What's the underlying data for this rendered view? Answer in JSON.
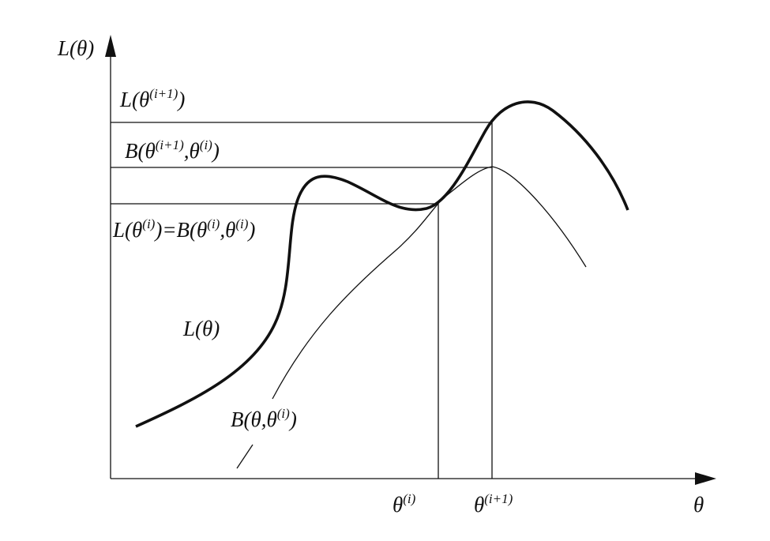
{
  "labels": [
    {
      "parts": [
        {
          "text": "L(θ)"
        }
      ]
    },
    {
      "parts": [
        {
          "text": "L(θ"
        },
        {
          "sup": "(i+1)"
        },
        {
          "text": ")"
        }
      ]
    },
    {
      "parts": [
        {
          "text": "B(θ"
        },
        {
          "sup": "(i+1)"
        },
        {
          "text": ",θ"
        },
        {
          "sup": "(i)"
        },
        {
          "text": ")"
        }
      ]
    },
    {
      "parts": [
        {
          "text": "L(θ"
        },
        {
          "sup": "(i)"
        },
        {
          "text": ")=B(θ"
        },
        {
          "sup": "(i)"
        },
        {
          "text": ",θ"
        },
        {
          "sup": "(i)"
        },
        {
          "text": ")"
        }
      ]
    },
    {
      "parts": [
        {
          "text": "L(θ)"
        }
      ]
    },
    {
      "parts": [
        {
          "text": "B(θ,θ"
        },
        {
          "sup": "(i)"
        },
        {
          "text": ")"
        }
      ]
    },
    {
      "parts": [
        {
          "text": "θ"
        },
        {
          "sup": "(i)"
        }
      ]
    },
    {
      "parts": [
        {
          "text": "θ"
        },
        {
          "sup": "(i+1)"
        }
      ]
    },
    {
      "parts": [
        {
          "text": "θ"
        }
      ]
    }
  ]
}
